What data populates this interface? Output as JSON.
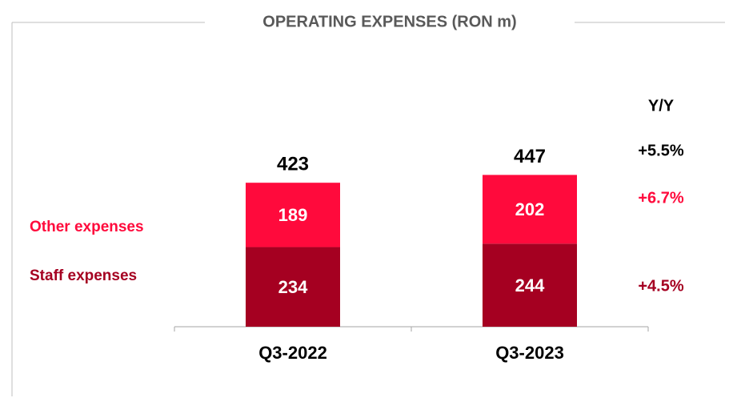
{
  "chart_data": {
    "type": "stacked-bar",
    "title": "OPERATING EXPENSES (RON m)",
    "categories": [
      "Q3-2022",
      "Q3-2023"
    ],
    "series": [
      {
        "name": "Staff expenses",
        "color": "#a50021",
        "values": [
          234,
          244
        ]
      },
      {
        "name": "Other expenses",
        "color": "#ff0a3c",
        "values": [
          189,
          202
        ]
      }
    ],
    "totals": [
      423,
      447
    ],
    "yoy": {
      "title": "Y/Y",
      "total": "+5.5%",
      "series": [
        "+4.5%",
        "+6.7%"
      ]
    }
  }
}
